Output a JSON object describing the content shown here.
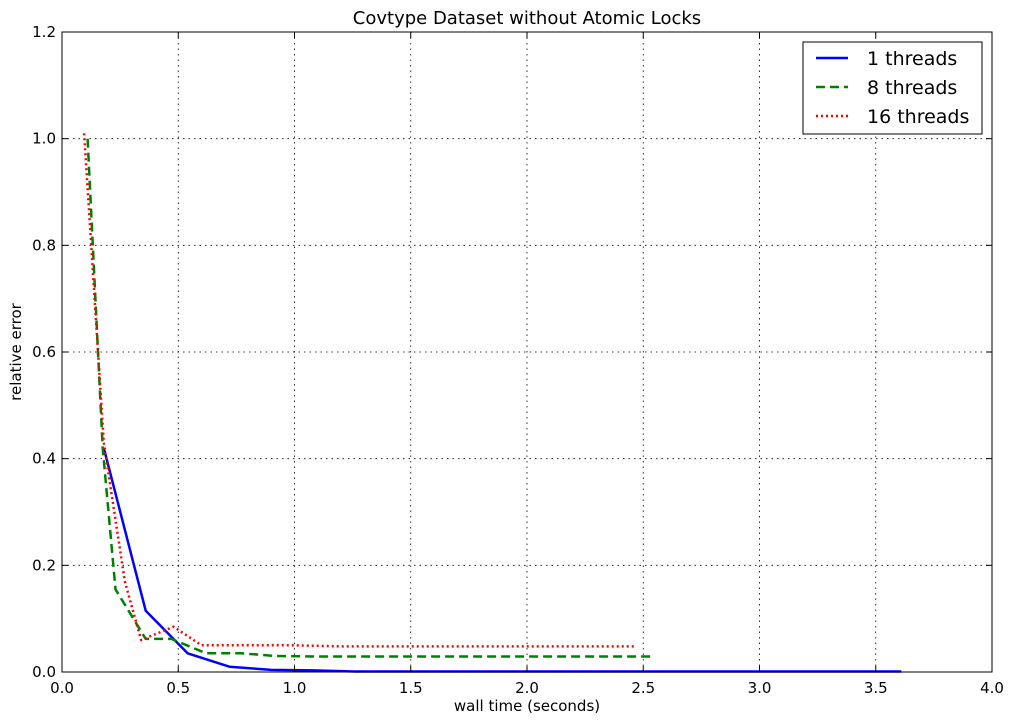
{
  "chart_data": {
    "type": "line",
    "title": "Covtype Dataset without Atomic Locks",
    "xlabel": "wall time (seconds)",
    "ylabel": "relative error",
    "xlim": [
      0.0,
      4.0
    ],
    "ylim": [
      0.0,
      1.2
    ],
    "xticks": [
      "0.0",
      "0.5",
      "1.0",
      "1.5",
      "2.0",
      "2.5",
      "3.0",
      "3.5",
      "4.0"
    ],
    "yticks": [
      "0.0",
      "0.2",
      "0.4",
      "0.6",
      "0.8",
      "1.0",
      "1.2"
    ],
    "grid": true,
    "legend_position": "top-right",
    "series": [
      {
        "name": "1 threads",
        "color": "#0000ff",
        "style": "solid",
        "x": [
          0.18,
          0.36,
          0.54,
          0.72,
          0.9,
          1.08,
          1.26,
          1.5,
          2.0,
          2.5,
          3.0,
          3.5,
          3.61
        ],
        "y": [
          0.42,
          0.115,
          0.035,
          0.01,
          0.004,
          0.003,
          0.001,
          0.001,
          0.001,
          0.001,
          0.001,
          0.001,
          0.001
        ]
      },
      {
        "name": "8 threads",
        "color": "#008000",
        "style": "dashed",
        "x": [
          0.11,
          0.175,
          0.23,
          0.36,
          0.47,
          0.62,
          0.77,
          0.92,
          1.1,
          1.5,
          2.0,
          2.3,
          2.54
        ],
        "y": [
          1.0,
          0.42,
          0.155,
          0.062,
          0.062,
          0.035,
          0.035,
          0.03,
          0.029,
          0.029,
          0.029,
          0.029,
          0.029
        ]
      },
      {
        "name": "16 threads",
        "color": "#ff0000",
        "style": "dotted",
        "x": [
          0.095,
          0.18,
          0.27,
          0.34,
          0.48,
          0.6,
          0.8,
          1.0,
          1.2,
          1.5,
          2.0,
          2.46
        ],
        "y": [
          1.01,
          0.43,
          0.17,
          0.06,
          0.085,
          0.05,
          0.05,
          0.05,
          0.048,
          0.048,
          0.048,
          0.048
        ]
      }
    ]
  }
}
